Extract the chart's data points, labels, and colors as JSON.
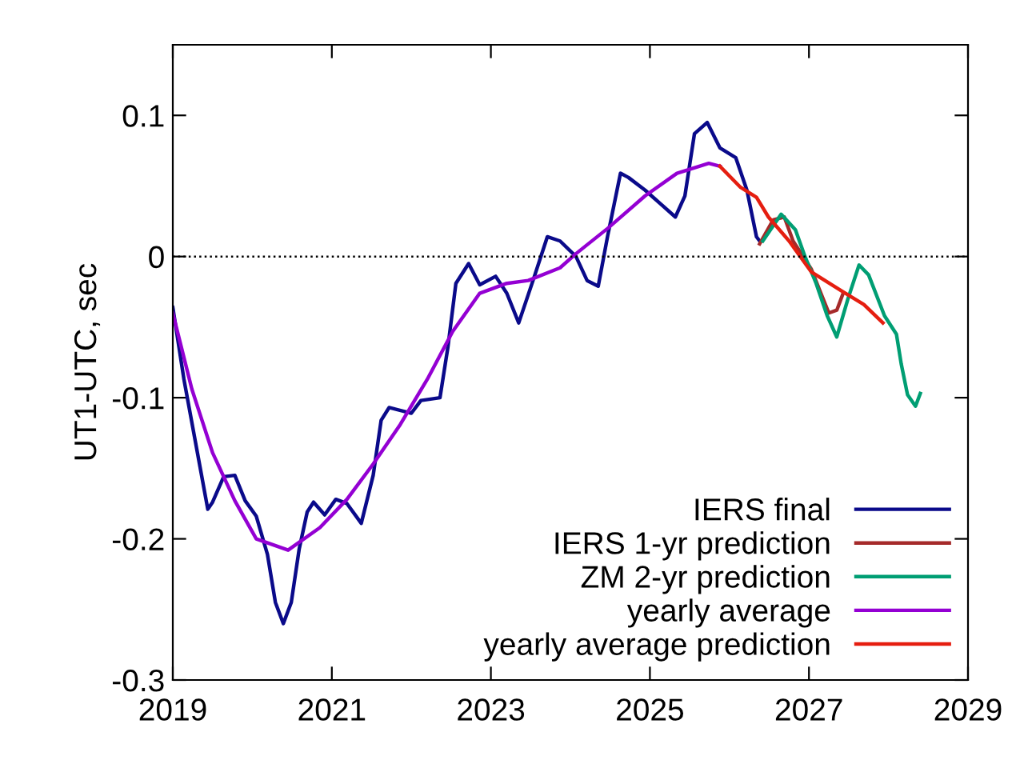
{
  "chart_data": {
    "type": "line",
    "ylabel": "UT1-UTC, sec",
    "xlim": [
      2019,
      2029
    ],
    "ylim": [
      -0.3,
      0.15
    ],
    "xticks": [
      2019,
      2021,
      2023,
      2025,
      2027,
      2029
    ],
    "yticks": [
      -0.3,
      -0.2,
      -0.1,
      0,
      0.1
    ],
    "grid": false,
    "legend": "bottom right",
    "line_style": "solid",
    "marker": "none",
    "ref_lines": [
      {
        "axis": "y",
        "value": 0,
        "color": "#000000",
        "line_style": "dotted"
      }
    ],
    "series": [
      {
        "name": "IERS final",
        "color": "#0a0a8a",
        "x": [
          2019.0,
          2019.14,
          2019.44,
          2019.5,
          2019.64,
          2019.78,
          2019.91,
          2020.05,
          2020.19,
          2020.29,
          2020.39,
          2020.49,
          2020.59,
          2020.69,
          2020.77,
          2020.91,
          2021.05,
          2021.19,
          2021.37,
          2021.52,
          2021.62,
          2021.72,
          2022.0,
          2022.12,
          2022.36,
          2022.46,
          2022.56,
          2022.72,
          2022.86,
          2023.06,
          2023.2,
          2023.35,
          2023.53,
          2023.71,
          2023.87,
          2024.07,
          2024.21,
          2024.35,
          2024.47,
          2024.63,
          2024.73,
          2024.94,
          2025.14,
          2025.32,
          2025.44,
          2025.56,
          2025.72,
          2025.88,
          2026.08,
          2026.22,
          2026.34,
          2026.38
        ],
        "values": [
          -0.036,
          -0.087,
          -0.179,
          -0.174,
          -0.156,
          -0.155,
          -0.173,
          -0.184,
          -0.211,
          -0.245,
          -0.26,
          -0.245,
          -0.207,
          -0.181,
          -0.174,
          -0.183,
          -0.172,
          -0.175,
          -0.189,
          -0.155,
          -0.116,
          -0.107,
          -0.111,
          -0.102,
          -0.1,
          -0.064,
          -0.019,
          -0.005,
          -0.02,
          -0.014,
          -0.026,
          -0.047,
          -0.017,
          0.014,
          0.011,
          0.0,
          -0.017,
          -0.021,
          0.015,
          0.059,
          0.056,
          0.047,
          0.037,
          0.028,
          0.043,
          0.087,
          0.095,
          0.077,
          0.07,
          0.047,
          0.014,
          0.011
        ]
      },
      {
        "name": "IERS 1-yr prediction",
        "color": "#a52a2a",
        "x": [
          2026.38,
          2026.55,
          2026.69,
          2026.8,
          2027.03,
          2027.15,
          2027.25,
          2027.35,
          2027.43
        ],
        "values": [
          0.009,
          0.026,
          0.028,
          0.011,
          -0.009,
          -0.026,
          -0.04,
          -0.038,
          -0.026
        ]
      },
      {
        "name": "ZM 2-yr prediction",
        "color": "#009e73",
        "x": [
          2026.42,
          2026.65,
          2026.83,
          2026.95,
          2027.09,
          2027.23,
          2027.35,
          2027.49,
          2027.63,
          2027.75,
          2027.95,
          2028.1,
          2028.16,
          2028.24,
          2028.34,
          2028.4
        ],
        "values": [
          0.011,
          0.03,
          0.019,
          0.0,
          -0.019,
          -0.042,
          -0.057,
          -0.03,
          -0.006,
          -0.013,
          -0.042,
          -0.055,
          -0.076,
          -0.098,
          -0.106,
          -0.097
        ]
      },
      {
        "name": "yearly average",
        "color": "#9400d3",
        "x": [
          2019.0,
          2019.24,
          2019.5,
          2019.78,
          2020.05,
          2020.45,
          2020.85,
          2021.19,
          2021.52,
          2021.86,
          2022.2,
          2022.52,
          2022.86,
          2023.2,
          2023.47,
          2023.87,
          2024.07,
          2024.47,
          2024.94,
          2025.34,
          2025.74,
          2025.88
        ],
        "values": [
          -0.04,
          -0.094,
          -0.139,
          -0.173,
          -0.2,
          -0.208,
          -0.192,
          -0.172,
          -0.147,
          -0.119,
          -0.087,
          -0.053,
          -0.026,
          -0.019,
          -0.017,
          -0.008,
          0.002,
          0.02,
          0.043,
          0.059,
          0.066,
          0.064
        ]
      },
      {
        "name": "yearly average prediction",
        "color": "#e51e10",
        "x": [
          2025.88,
          2026.14,
          2026.34,
          2026.49,
          2026.75,
          2027.03,
          2027.43,
          2027.69,
          2027.93
        ],
        "values": [
          0.064,
          0.049,
          0.042,
          0.028,
          0.011,
          -0.011,
          -0.025,
          -0.034,
          -0.047
        ]
      }
    ]
  }
}
